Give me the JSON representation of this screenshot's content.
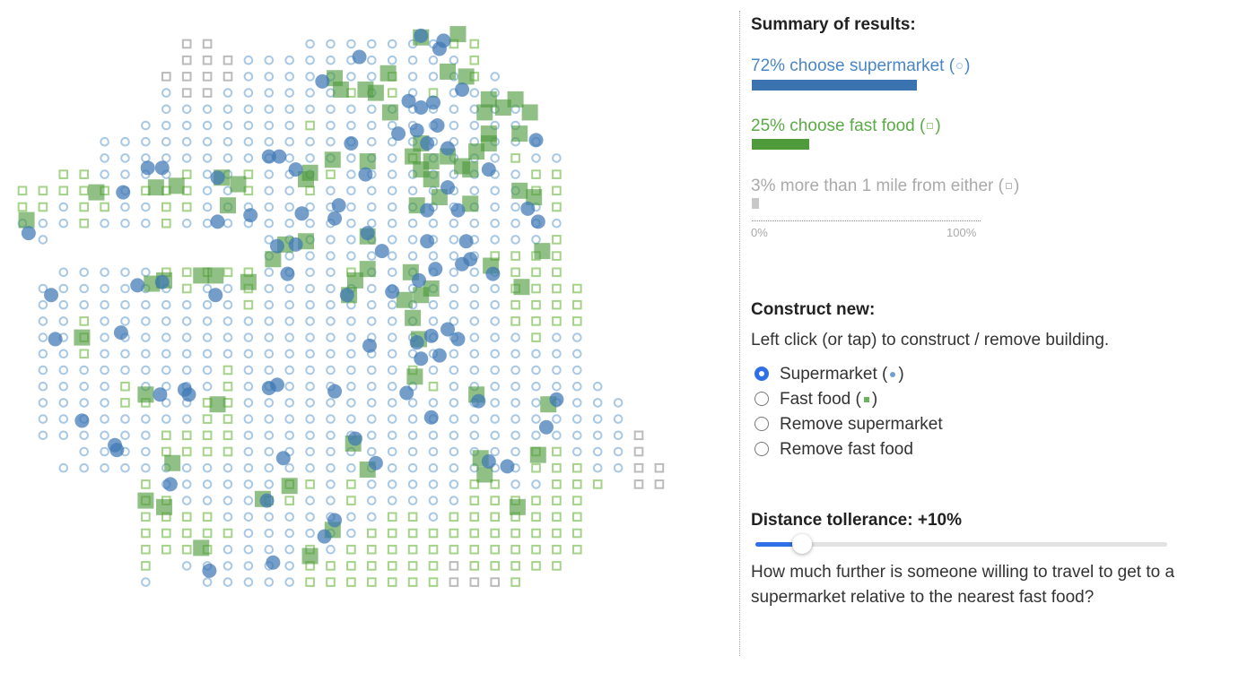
{
  "colors": {
    "supermarket": "#3f77b4",
    "supermarket_light": "#a9c8e3",
    "supermarket_text": "#4a86c5",
    "fastfood": "#4e9a3c",
    "fastfood_light": "#a5d38a",
    "fastfood_text": "#5aaa45",
    "none": "#bbbbbb",
    "none_text": "#aaaaaa",
    "accent": "#2f6fe8"
  },
  "summary": {
    "title": "Summary of results:",
    "items": [
      {
        "label": "72% choose supermarket (",
        "close": ")",
        "percent": 72,
        "icon": "open-circle"
      },
      {
        "label": "25% choose fast food (",
        "close": ")",
        "percent": 25,
        "icon": "open-square"
      },
      {
        "label": "3% more than 1 mile from either (",
        "close": ")",
        "percent": 3,
        "icon": "gray-square"
      }
    ],
    "axis_min": "0%",
    "axis_max": "100%"
  },
  "construct": {
    "title": "Construct new:",
    "instructions": "Left click (or tap) to construct / remove building.",
    "options": [
      {
        "label": "Supermarket (",
        "close": ")",
        "selected": true
      },
      {
        "label": "Fast food (",
        "close": ")",
        "selected": false
      },
      {
        "label": "Remove supermarket",
        "selected": false
      },
      {
        "label": "Remove fast food",
        "selected": false
      }
    ]
  },
  "tolerance": {
    "title": "Distance tollerance: +10%",
    "value_percent": 10,
    "max_percent": 100,
    "question_line1": "How much further is someone willing to travel to get to a",
    "question_line2": "supermarket relative to the nearest fast food?"
  },
  "map": {
    "legend": {
      "o": "chooses supermarket",
      "s": "chooses fast food",
      "g": "more than 1 mile from either"
    },
    "grid_rows": [
      "8g2 14o7 21s2",
      "8g3 11o11 22s1",
      "7g4 11o7 18s1 19o3 22s1 23o1",
      "7o1 8g2 10o6 16s1 17o1 18s1 19o1 20s1 21o3",
      "7o18",
      "6o8 14s1 15o10",
      "4o22",
      "4o15 19s1 20o4 24s1 25o2",
      "2s2 4o4 8s1 9o2 11s1 12o3 15s1 16o9 25s2",
      "0s5 5o1 6s3 9o2 11s1 12o2 14s1 15o10 25s2",
      "0s2 2o1 3s2 5o2 7s2 9o17 26s1",
      "0o3 3s1 4o3 7s1 8o19",
      "1o1 12o14 26s1",
      "12o11 23s4",
      "2o5 7s5 12o4 16s1 17o7 24s3",
      "1o7 8s1 9o2 11s1 12o12 24s4",
      "1o10 11s1 12o12 24s4",
      "1o2 3s1 4o20 24s4",
      "1o2 3s1 4o21 25s1 26o2",
      "1o2 3s1 4o24",
      "1o9 10s1 11o8 19s1 20o8",
      "1o4 5s1 6o4 10s1 11o9 20s1 21o8",
      "1o4 5s2 7o2 9s2 11o19",
      "1o8 9s2 11o19",
      "1o6 7s4 11o19 30g1",
      "3o4 7s4 11o14 25s2 27o3 30g1",
      "2o23 25s3 28o2 30g2",
      "6s1 7o6 13s2 15o1 16s1 17o5 22s2 24o2 26s3 30g2",
      "6s2 8o4 12s2 14o2 16s1 17o5 22s6",
      "6s4 10o8 18s2 20o1 21s7",
      "6s5 11o6 17s11",
      "6s4 10o4 14s1 15o1 16s12",
      "6s1 8o6 14s7 21g1 22s5",
      "6o1 9o5 14s7 21g3 24s1"
    ],
    "supermarkets": [
      [
        16.4,
        0.8
      ],
      [
        14.6,
        2.3
      ],
      [
        19.4,
        -0.5
      ],
      [
        20.3,
        0.3
      ],
      [
        20.5,
        -0.2
      ],
      [
        21.4,
        2.8
      ],
      [
        20,
        3.6
      ],
      [
        19.4,
        3.9
      ],
      [
        18.8,
        3.5
      ],
      [
        18.3,
        5.5
      ],
      [
        19.2,
        5.3
      ],
      [
        20.2,
        5
      ],
      [
        19.7,
        6.1
      ],
      [
        20.7,
        6.4
      ],
      [
        20.7,
        8.8
      ],
      [
        21.2,
        10.2
      ],
      [
        19.7,
        10.2
      ],
      [
        19.7,
        12.1
      ],
      [
        21.6,
        12.1
      ],
      [
        21.8,
        13.2
      ],
      [
        21.4,
        13.5
      ],
      [
        22.9,
        14.1
      ],
      [
        22.7,
        7.7
      ],
      [
        25,
        5.9
      ],
      [
        24.6,
        10.1
      ],
      [
        25.1,
        10.9
      ],
      [
        16,
        6.1
      ],
      [
        16.7,
        8
      ],
      [
        13.3,
        7.7
      ],
      [
        12.5,
        6.9
      ],
      [
        12,
        6.9
      ],
      [
        9.5,
        8.2
      ],
      [
        6.1,
        7.6
      ],
      [
        6.8,
        7.6
      ],
      [
        4.9,
        9.1
      ],
      [
        9.5,
        10.9
      ],
      [
        11.1,
        10.5
      ],
      [
        13.6,
        10.4
      ],
      [
        15.2,
        10.7
      ],
      [
        15.4,
        9.9
      ],
      [
        12.9,
        14.1
      ],
      [
        12.4,
        12.4
      ],
      [
        13.3,
        12.3
      ],
      [
        17.5,
        12.7
      ],
      [
        16.8,
        11.6
      ],
      [
        20.1,
        13.8
      ],
      [
        18,
        15.2
      ],
      [
        19.3,
        14.5
      ],
      [
        15.8,
        15.4
      ],
      [
        16.9,
        18.5
      ],
      [
        20.7,
        17.5
      ],
      [
        21.2,
        18.1
      ],
      [
        19.9,
        17.9
      ],
      [
        19.2,
        18.3
      ],
      [
        19.4,
        19.3
      ],
      [
        20.3,
        19.1
      ],
      [
        5.6,
        14.8
      ],
      [
        1.4,
        15.4
      ],
      [
        1.6,
        18.1
      ],
      [
        4.8,
        17.7
      ],
      [
        0.3,
        11.6
      ],
      [
        9.4,
        15.4
      ],
      [
        6.8,
        14.6
      ],
      [
        12,
        21.1
      ],
      [
        12.4,
        20.9
      ],
      [
        15.2,
        21.3
      ],
      [
        7.9,
        21.2
      ],
      [
        8.1,
        21.5
      ],
      [
        6.7,
        21.5
      ],
      [
        2.9,
        23.1
      ],
      [
        4.5,
        24.6
      ],
      [
        4.6,
        24.9
      ],
      [
        7.2,
        27
      ],
      [
        9.1,
        32.3
      ],
      [
        12.2,
        31.8
      ],
      [
        12.7,
        25.4
      ],
      [
        11.9,
        28
      ],
      [
        14.7,
        30.2
      ],
      [
        15.2,
        29.2
      ],
      [
        16.2,
        24.2
      ],
      [
        17.2,
        25.7
      ],
      [
        19.9,
        22.9
      ],
      [
        22.2,
        21.9
      ],
      [
        23.6,
        25.9
      ],
      [
        26,
        21.8
      ],
      [
        25.5,
        23.5
      ],
      [
        22.7,
        25.6
      ],
      [
        18.7,
        21.4
      ]
    ],
    "fastfoods": [
      [
        17.8,
        1.8
      ],
      [
        19.4,
        -0.4
      ],
      [
        21.2,
        -0.6
      ],
      [
        20.7,
        1.7
      ],
      [
        21.6,
        2
      ],
      [
        22.7,
        3.4
      ],
      [
        22.5,
        4.2
      ],
      [
        23.4,
        3.9
      ],
      [
        24,
        3.4
      ],
      [
        24.7,
        4.2
      ],
      [
        24.2,
        5.5
      ],
      [
        22.7,
        5.5
      ],
      [
        22.1,
        6.6
      ],
      [
        22.7,
        6.1
      ],
      [
        19.4,
        6.1
      ],
      [
        19,
        6.9
      ],
      [
        19.9,
        7.2
      ],
      [
        20.7,
        6.9
      ],
      [
        21.4,
        7.5
      ],
      [
        21.8,
        7.7
      ],
      [
        19.4,
        7.7
      ],
      [
        19.9,
        8.3
      ],
      [
        19.2,
        9.9
      ],
      [
        20.3,
        9.4
      ],
      [
        21.8,
        9.8
      ],
      [
        24.2,
        9
      ],
      [
        24.9,
        9.4
      ],
      [
        16.7,
        2.8
      ],
      [
        17.2,
        3
      ],
      [
        15.5,
        2.8
      ],
      [
        15.2,
        2.1
      ],
      [
        17.9,
        4.2
      ],
      [
        16.8,
        7.2
      ],
      [
        15.1,
        7.1
      ],
      [
        14,
        7.9
      ],
      [
        13.8,
        8.3
      ],
      [
        10.5,
        8.6
      ],
      [
        9.7,
        8.2
      ],
      [
        7.5,
        8.7
      ],
      [
        6.5,
        8.8
      ],
      [
        3.6,
        9.1
      ],
      [
        0.2,
        10.8
      ],
      [
        10,
        9.9
      ],
      [
        12.2,
        13.2
      ],
      [
        12.8,
        12.3
      ],
      [
        13.8,
        12.1
      ],
      [
        16.8,
        11.8
      ],
      [
        18.9,
        14
      ],
      [
        19.9,
        15
      ],
      [
        16.8,
        13.8
      ],
      [
        15.9,
        15.4
      ],
      [
        16.2,
        14.5
      ],
      [
        19.4,
        15.4
      ],
      [
        19,
        16.8
      ],
      [
        19.3,
        18.1
      ],
      [
        18.6,
        15.7
      ],
      [
        22.8,
        13.6
      ],
      [
        24.3,
        14.9
      ],
      [
        25.3,
        12.7
      ],
      [
        19.1,
        20.4
      ],
      [
        6.9,
        14.5
      ],
      [
        6.3,
        14.7
      ],
      [
        8.7,
        14.2
      ],
      [
        9.4,
        14.2
      ],
      [
        11,
        14.6
      ],
      [
        2.9,
        18
      ],
      [
        6,
        21.5
      ],
      [
        9.5,
        22.1
      ],
      [
        7.3,
        25.7
      ],
      [
        6,
        28
      ],
      [
        6.9,
        28.4
      ],
      [
        8.7,
        30.9
      ],
      [
        11.7,
        27.9
      ],
      [
        13,
        27.1
      ],
      [
        14,
        31.4
      ],
      [
        15.1,
        29.8
      ],
      [
        16.1,
        24.5
      ],
      [
        16.8,
        26.1
      ],
      [
        22.3,
        25.4
      ],
      [
        22.1,
        21.5
      ],
      [
        22.5,
        26.4
      ],
      [
        24.1,
        28.4
      ],
      [
        25.1,
        25.2
      ],
      [
        25.6,
        22.1
      ]
    ]
  }
}
